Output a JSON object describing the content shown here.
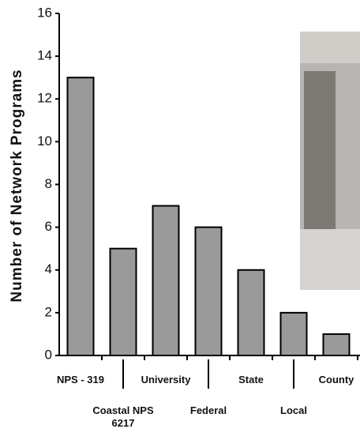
{
  "chart_data": {
    "type": "bar",
    "y_label": "Number of Network Programs",
    "categories": [
      "NPS - 319",
      "Coastal NPS 6217",
      "University",
      "Federal",
      "State",
      "Local",
      "County"
    ],
    "values": [
      13,
      5,
      7,
      6,
      4,
      2,
      1
    ],
    "color": "#9a9a9a",
    "ylim": [
      0,
      16
    ],
    "yticks": [
      0,
      2,
      4,
      6,
      8,
      10,
      12,
      14,
      16
    ],
    "grid": false
  }
}
